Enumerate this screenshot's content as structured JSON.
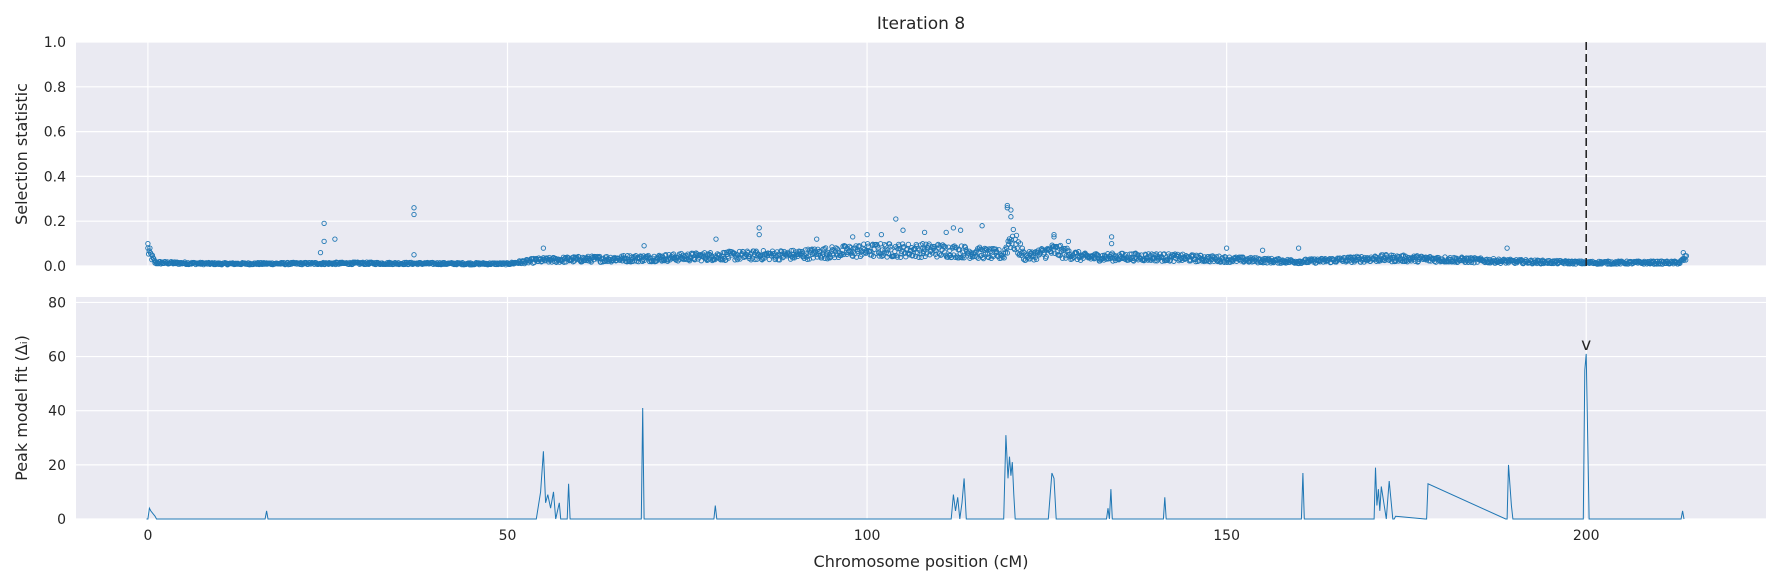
{
  "figure": {
    "title": "Iteration 8",
    "xlabel": "Chromosome position (cM)"
  },
  "colors": {
    "series": "#1f77b4",
    "panel_bg": "#eaeaf2",
    "grid": "#ffffff",
    "marker_line": "#262626",
    "text": "#262626"
  },
  "chart_data": [
    {
      "type": "scatter",
      "ylabel": "Selection statistic",
      "xlim": [
        -10,
        225
      ],
      "ylim": [
        0,
        1.0
      ],
      "xticks": [
        0,
        50,
        100,
        150,
        200
      ],
      "yticks": [
        0.0,
        0.2,
        0.4,
        0.6,
        0.8,
        1.0
      ],
      "ytick_labels": [
        "0.0",
        "0.2",
        "0.4",
        "0.6",
        "0.8",
        "1.0"
      ],
      "vline": {
        "x": 200,
        "style": "dashed"
      },
      "grid": true,
      "marker": "open-circle",
      "baseline_profile": [
        [
          0,
          0.07
        ],
        [
          1,
          0.015
        ],
        [
          10,
          0.01
        ],
        [
          30,
          0.012
        ],
        [
          50,
          0.01
        ],
        [
          54,
          0.025
        ],
        [
          60,
          0.03
        ],
        [
          70,
          0.035
        ],
        [
          80,
          0.045
        ],
        [
          90,
          0.05
        ],
        [
          100,
          0.07
        ],
        [
          110,
          0.07
        ],
        [
          115,
          0.06
        ],
        [
          119,
          0.05
        ],
        [
          120,
          0.13
        ],
        [
          122,
          0.04
        ],
        [
          126,
          0.07
        ],
        [
          130,
          0.04
        ],
        [
          140,
          0.04
        ],
        [
          150,
          0.03
        ],
        [
          160,
          0.02
        ],
        [
          172,
          0.035
        ],
        [
          180,
          0.03
        ],
        [
          190,
          0.02
        ],
        [
          200,
          0.015
        ],
        [
          213,
          0.015
        ],
        [
          214,
          0.04
        ]
      ],
      "outliers": [
        [
          0,
          0.1
        ],
        [
          24,
          0.06
        ],
        [
          24.5,
          0.19
        ],
        [
          24.5,
          0.11
        ],
        [
          26,
          0.12
        ],
        [
          37,
          0.26
        ],
        [
          37,
          0.23
        ],
        [
          37,
          0.05
        ],
        [
          55,
          0.08
        ],
        [
          69,
          0.09
        ],
        [
          79,
          0.12
        ],
        [
          85,
          0.17
        ],
        [
          85,
          0.14
        ],
        [
          93,
          0.12
        ],
        [
          98,
          0.13
        ],
        [
          100,
          0.14
        ],
        [
          102,
          0.14
        ],
        [
          104,
          0.21
        ],
        [
          105,
          0.16
        ],
        [
          108,
          0.15
        ],
        [
          111,
          0.15
        ],
        [
          112,
          0.17
        ],
        [
          113,
          0.16
        ],
        [
          116,
          0.18
        ],
        [
          119.5,
          0.27
        ],
        [
          119.5,
          0.26
        ],
        [
          120,
          0.25
        ],
        [
          120,
          0.22
        ],
        [
          126,
          0.14
        ],
        [
          126,
          0.13
        ],
        [
          128,
          0.11
        ],
        [
          134,
          0.13
        ],
        [
          134,
          0.1
        ],
        [
          150,
          0.08
        ],
        [
          155,
          0.07
        ],
        [
          160,
          0.08
        ],
        [
          189,
          0.08
        ],
        [
          213.5,
          0.06
        ]
      ]
    },
    {
      "type": "line",
      "ylabel": "Peak model fit (Δᵢ)",
      "xlim": [
        -10,
        225
      ],
      "ylim": [
        0,
        82
      ],
      "xticks": [
        0,
        50,
        100,
        150,
        200
      ],
      "xtick_labels": [
        "0",
        "50",
        "100",
        "150",
        "200"
      ],
      "yticks": [
        0,
        20,
        40,
        60,
        80
      ],
      "ytick_labels": [
        "0",
        "20",
        "40",
        "60",
        "80"
      ],
      "grid": true,
      "annotation": {
        "x": 200,
        "y": 61,
        "text": "v"
      },
      "x": [
        0,
        0.2,
        0.4,
        0.7,
        1.0,
        1.2,
        16.3,
        16.5,
        16.7,
        54.0,
        54.6,
        55.0,
        55.3,
        55.6,
        56.0,
        56.4,
        56.7,
        57.2,
        57.4,
        57.6,
        58.3,
        58.5,
        58.7,
        68.6,
        68.8,
        69.0,
        78.7,
        78.9,
        79.1,
        111.7,
        112.0,
        112.3,
        112.6,
        112.9,
        113.2,
        113.5,
        113.8,
        119.0,
        119.3,
        119.6,
        119.8,
        120.0,
        120.2,
        120.4,
        120.6,
        125.2,
        125.7,
        126.0,
        126.3,
        133.3,
        133.5,
        133.7,
        133.9,
        134.1,
        141.2,
        141.4,
        141.6,
        160.4,
        160.6,
        160.8,
        170.5,
        170.7,
        170.9,
        171.1,
        171.3,
        171.5,
        172.2,
        172.4,
        172.6,
        173.1,
        173.3,
        173.5,
        177.6,
        177.8,
        178.0,
        188.8,
        189.0,
        189.2,
        189.6,
        189.8,
        190.0,
        199.6,
        199.8,
        200.0,
        200.2,
        200.4,
        213.2,
        213.4,
        213.6
      ],
      "y": [
        0,
        4,
        3,
        2,
        1,
        0,
        0,
        3,
        0,
        0,
        10,
        25,
        6,
        9,
        4,
        10,
        0,
        6,
        0,
        0,
        0,
        13,
        0,
        0,
        41,
        0,
        0,
        5,
        0,
        0,
        9,
        3,
        8,
        0,
        6,
        15,
        0,
        0,
        31,
        15,
        23,
        16,
        21,
        9,
        0,
        0,
        17,
        15,
        0,
        0,
        4,
        0,
        11,
        0,
        0,
        8,
        0,
        0,
        17,
        0,
        0,
        19,
        5,
        11,
        3,
        12,
        0,
        7,
        14,
        0,
        0,
        1,
        0,
        0,
        13,
        0,
        0,
        20,
        5,
        0,
        0,
        0,
        55,
        61,
        30,
        0,
        0,
        3,
        0
      ]
    }
  ]
}
